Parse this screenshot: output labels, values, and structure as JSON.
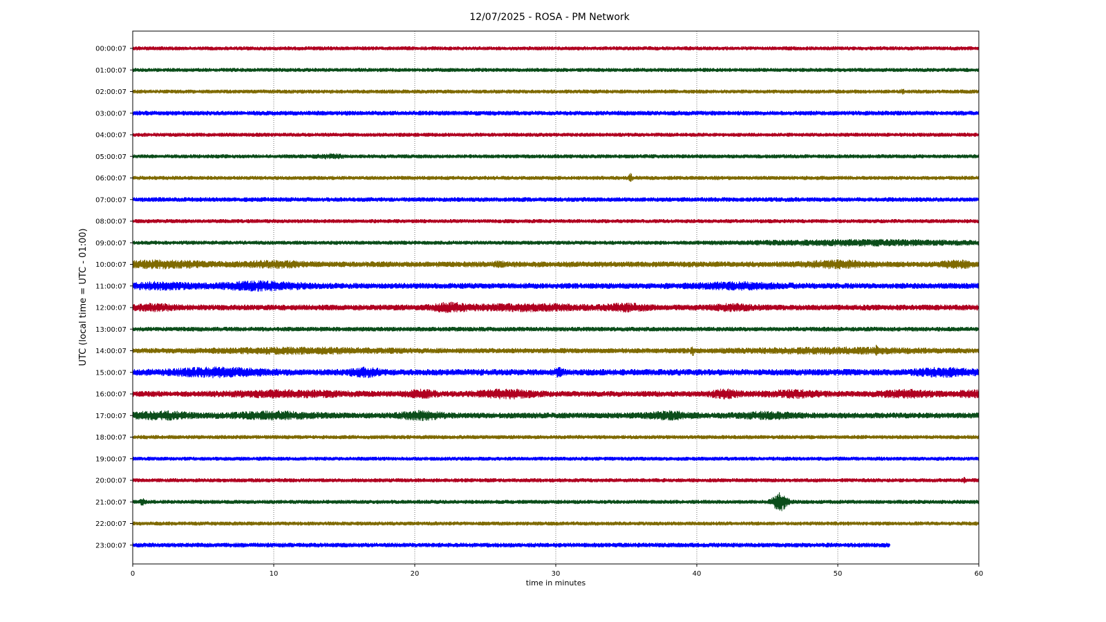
{
  "chart_data": {
    "type": "line",
    "title": "12/07/2025 - ROSA - PM Network",
    "xlabel": "time in minutes",
    "ylabel": "UTC (local time = UTC - 01:00)",
    "xlim": [
      0,
      60
    ],
    "x_ticks": [
      "0",
      "10",
      "20",
      "30",
      "40",
      "50",
      "60"
    ],
    "x_tick_values": [
      0,
      10,
      20,
      30,
      40,
      50,
      60
    ],
    "grid": "vertical dotted at x tick positions",
    "colors": [
      "#b00020",
      "#0b4d1a",
      "#7f6a00",
      "#0000ff"
    ],
    "series": [
      {
        "label": "00:00:07",
        "color": "#b00020",
        "end_minute": 60,
        "noise": 0.3,
        "events": []
      },
      {
        "label": "01:00:07",
        "color": "#0b4d1a",
        "end_minute": 60,
        "noise": 0.3,
        "events": []
      },
      {
        "label": "02:00:07",
        "color": "#7f6a00",
        "end_minute": 60,
        "noise": 0.3,
        "events": [
          {
            "minute": 54.6,
            "amplitude": 0.3,
            "width": 0.1
          }
        ]
      },
      {
        "label": "03:00:07",
        "color": "#0000ff",
        "end_minute": 60,
        "noise": 0.35,
        "events": []
      },
      {
        "label": "04:00:07",
        "color": "#b00020",
        "end_minute": 60,
        "noise": 0.3,
        "events": []
      },
      {
        "label": "05:00:07",
        "color": "#0b4d1a",
        "end_minute": 60,
        "noise": 0.3,
        "events": [
          {
            "minute": 14.0,
            "amplitude": 0.2,
            "width": 1.0
          }
        ]
      },
      {
        "label": "06:00:07",
        "color": "#7f6a00",
        "end_minute": 60,
        "noise": 0.3,
        "events": [
          {
            "minute": 35.3,
            "amplitude": 0.6,
            "width": 0.12
          }
        ]
      },
      {
        "label": "07:00:07",
        "color": "#0000ff",
        "end_minute": 60,
        "noise": 0.35,
        "events": []
      },
      {
        "label": "08:00:07",
        "color": "#b00020",
        "end_minute": 60,
        "noise": 0.3,
        "events": []
      },
      {
        "label": "09:00:07",
        "color": "#0b4d1a",
        "end_minute": 60,
        "noise": 0.3,
        "events": [
          {
            "minute": 52.0,
            "amplitude": 0.3,
            "width": 8.0
          }
        ]
      },
      {
        "label": "10:00:07",
        "color": "#7f6a00",
        "end_minute": 60,
        "noise": 0.45,
        "events": [
          {
            "minute": 2.0,
            "amplitude": 0.35,
            "width": 3.0
          },
          {
            "minute": 10.0,
            "amplitude": 0.3,
            "width": 2.0
          },
          {
            "minute": 26.0,
            "amplitude": 0.3,
            "width": 0.3
          },
          {
            "minute": 50.0,
            "amplitude": 0.35,
            "width": 2.0
          },
          {
            "minute": 58.5,
            "amplitude": 0.35,
            "width": 1.0
          }
        ]
      },
      {
        "label": "11:00:07",
        "color": "#0000ff",
        "end_minute": 60,
        "noise": 0.45,
        "events": [
          {
            "minute": 2.0,
            "amplitude": 0.35,
            "width": 2.0
          },
          {
            "minute": 9.0,
            "amplitude": 0.45,
            "width": 3.0
          },
          {
            "minute": 43.0,
            "amplitude": 0.3,
            "width": 3.0
          }
        ]
      },
      {
        "label": "12:00:07",
        "color": "#b00020",
        "end_minute": 60,
        "noise": 0.45,
        "events": [
          {
            "minute": 1.5,
            "amplitude": 0.3,
            "width": 1.5
          },
          {
            "minute": 22.5,
            "amplitude": 0.45,
            "width": 1.2
          },
          {
            "minute": 28.0,
            "amplitude": 0.3,
            "width": 4.0
          },
          {
            "minute": 35.0,
            "amplitude": 0.35,
            "width": 1.5
          },
          {
            "minute": 42.5,
            "amplitude": 0.3,
            "width": 1.5
          }
        ]
      },
      {
        "label": "13:00:07",
        "color": "#0b4d1a",
        "end_minute": 60,
        "noise": 0.35,
        "events": []
      },
      {
        "label": "14:00:07",
        "color": "#7f6a00",
        "end_minute": 60,
        "noise": 0.4,
        "events": [
          {
            "minute": 12.0,
            "amplitude": 0.25,
            "width": 6.0
          },
          {
            "minute": 39.7,
            "amplitude": 0.6,
            "width": 0.1
          },
          {
            "minute": 52.7,
            "amplitude": 0.4,
            "width": 0.1
          },
          {
            "minute": 50.0,
            "amplitude": 0.25,
            "width": 6.0
          }
        ]
      },
      {
        "label": "15:00:07",
        "color": "#0000ff",
        "end_minute": 60,
        "noise": 0.5,
        "events": [
          {
            "minute": 6.0,
            "amplitude": 0.45,
            "width": 3.0
          },
          {
            "minute": 16.5,
            "amplitude": 0.45,
            "width": 1.0
          },
          {
            "minute": 30.2,
            "amplitude": 0.4,
            "width": 0.3
          },
          {
            "minute": 57.5,
            "amplitude": 0.4,
            "width": 2.0
          }
        ]
      },
      {
        "label": "16:00:07",
        "color": "#b00020",
        "end_minute": 60,
        "noise": 0.45,
        "events": [
          {
            "minute": 11.0,
            "amplitude": 0.3,
            "width": 4.0
          },
          {
            "minute": 20.5,
            "amplitude": 0.4,
            "width": 1.0
          },
          {
            "minute": 26.5,
            "amplitude": 0.45,
            "width": 2.0
          },
          {
            "minute": 42.0,
            "amplitude": 0.45,
            "width": 1.0
          },
          {
            "minute": 47.0,
            "amplitude": 0.35,
            "width": 2.0
          },
          {
            "minute": 55.0,
            "amplitude": 0.35,
            "width": 2.0
          },
          {
            "minute": 59.5,
            "amplitude": 0.3,
            "width": 1.0
          }
        ]
      },
      {
        "label": "17:00:07",
        "color": "#0b4d1a",
        "end_minute": 60,
        "noise": 0.45,
        "events": [
          {
            "minute": 2.0,
            "amplitude": 0.4,
            "width": 2.0
          },
          {
            "minute": 10.0,
            "amplitude": 0.35,
            "width": 3.0
          },
          {
            "minute": 20.5,
            "amplitude": 0.45,
            "width": 1.5
          },
          {
            "minute": 38.0,
            "amplitude": 0.4,
            "width": 1.5
          },
          {
            "minute": 45.0,
            "amplitude": 0.3,
            "width": 2.0
          }
        ]
      },
      {
        "label": "18:00:07",
        "color": "#7f6a00",
        "end_minute": 60,
        "noise": 0.3,
        "events": []
      },
      {
        "label": "19:00:07",
        "color": "#0000ff",
        "end_minute": 60,
        "noise": 0.3,
        "events": []
      },
      {
        "label": "20:00:07",
        "color": "#b00020",
        "end_minute": 60,
        "noise": 0.3,
        "events": [
          {
            "minute": 59.0,
            "amplitude": 0.25,
            "width": 0.1
          }
        ]
      },
      {
        "label": "21:00:07",
        "color": "#0b4d1a",
        "end_minute": 60,
        "noise": 0.3,
        "events": [
          {
            "minute": 0.7,
            "amplitude": 0.35,
            "width": 0.2
          },
          {
            "minute": 45.9,
            "amplitude": 1.3,
            "width": 0.5
          }
        ]
      },
      {
        "label": "22:00:07",
        "color": "#7f6a00",
        "end_minute": 60,
        "noise": 0.3,
        "events": []
      },
      {
        "label": "23:00:07",
        "color": "#0000ff",
        "end_minute": 53.7,
        "noise": 0.35,
        "events": []
      }
    ]
  }
}
